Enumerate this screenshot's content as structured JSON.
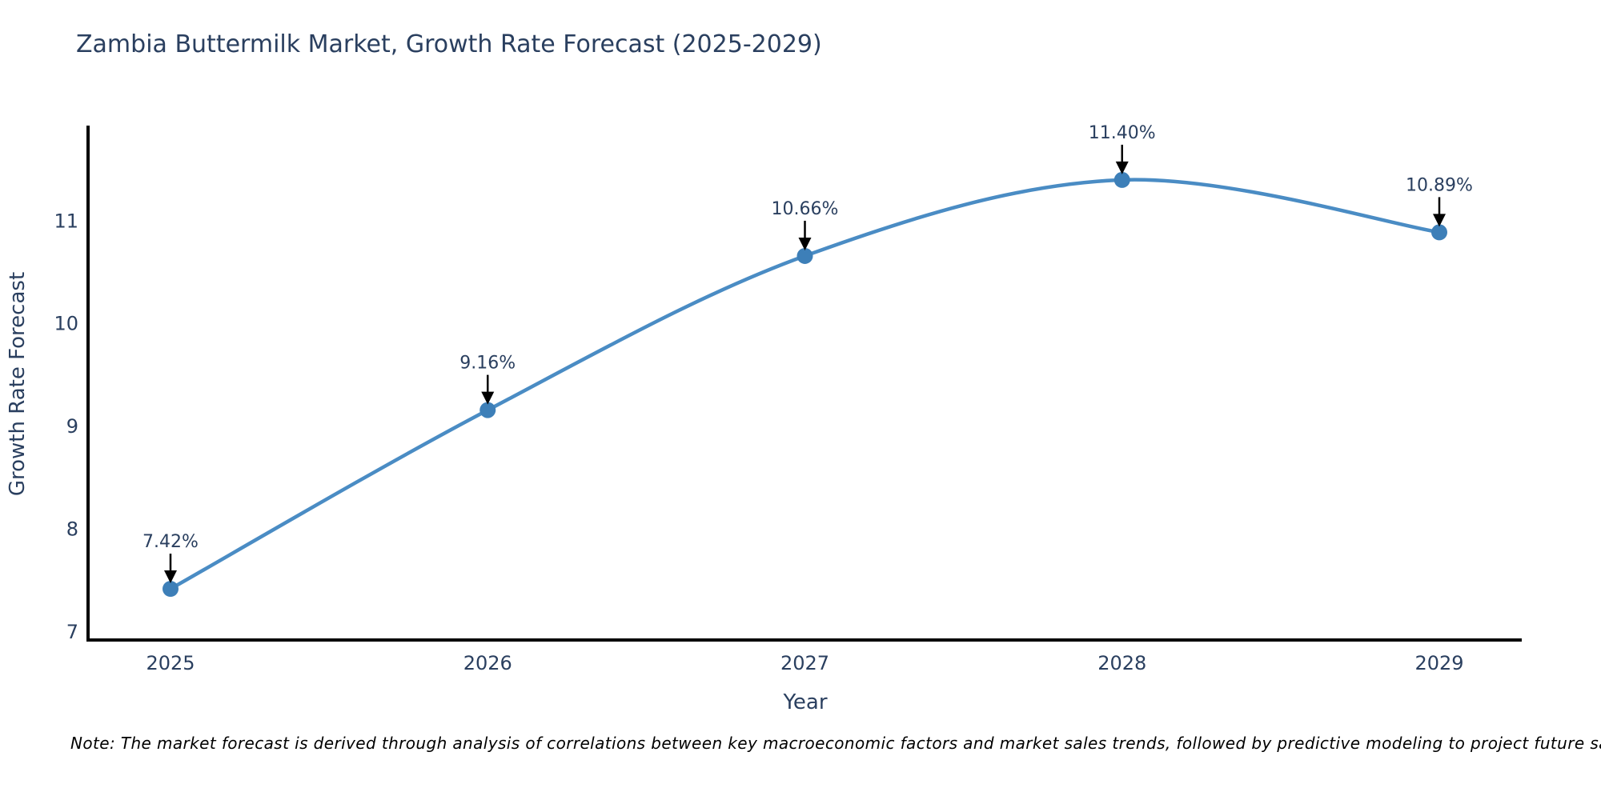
{
  "chart_data": {
    "type": "line",
    "title": "Zambia Buttermilk Market, Growth Rate Forecast (2025-2029)",
    "xlabel": "Year",
    "ylabel": "Growth Rate Forecast",
    "x": [
      2025,
      2026,
      2027,
      2028,
      2029
    ],
    "series": [
      {
        "name": "Growth Rate Forecast",
        "values": [
          7.42,
          9.16,
          10.66,
          11.4,
          10.89
        ]
      }
    ],
    "annotations": [
      {
        "x": 2025,
        "y": 7.42,
        "text": "7.42%"
      },
      {
        "x": 2026,
        "y": 9.16,
        "text": "9.16%"
      },
      {
        "x": 2027,
        "y": 10.66,
        "text": "10.66%"
      },
      {
        "x": 2028,
        "y": 11.4,
        "text": "11.40%"
      },
      {
        "x": 2029,
        "y": 10.89,
        "text": "10.89%"
      }
    ],
    "xticks": [
      "2025",
      "2026",
      "2027",
      "2028",
      "2029"
    ],
    "yticks": [
      7,
      8,
      9,
      10,
      11
    ],
    "ylim": [
      6.92,
      11.95
    ],
    "line_shape": "spline",
    "grid": false,
    "legend": "none",
    "colors": {
      "line": "#4a8cc4",
      "marker": "#3d7fb8",
      "title": "#2a3f5f",
      "tick_label": "#2a3f5f",
      "axis_title": "#2a3f5f",
      "annotation_text": "#2a3f5f",
      "annotation_arrow": "#000000",
      "axis_line": "#000000",
      "background": "#ffffff"
    }
  },
  "note": {
    "text": "Note: The market forecast is derived through analysis of correlations between key macroeconomic factors and market sales trends, followed by predictive modeling to project future sales"
  }
}
